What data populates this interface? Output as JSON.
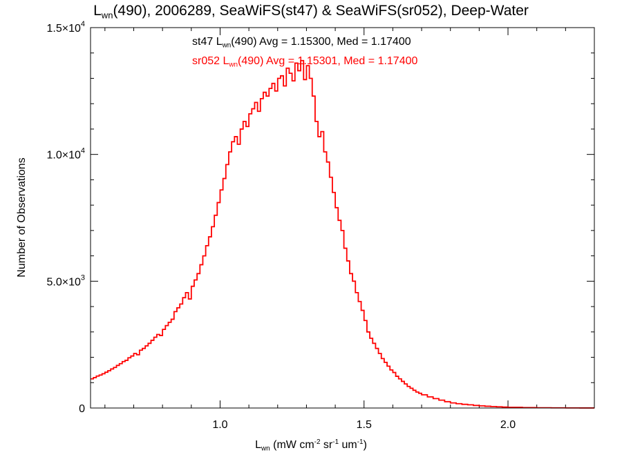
{
  "chart_data": {
    "type": "histogram",
    "title": {
      "prefix": "L",
      "sub": "wn",
      "suffix": "(490), 2006289, SeaWiFS(st47) & SeaWiFS(sr052), Deep-Water"
    },
    "xlabel": {
      "prefix": "L",
      "sub": "wn",
      "p1": " (mW cm",
      "sup1": "-2",
      "p2": " sr",
      "sup2": "-1",
      "p3": " um",
      "sup3": "-1",
      "p4": ")"
    },
    "ylabel": "Number of Observations",
    "xlim": [
      0.55,
      2.3
    ],
    "ylim": [
      0,
      15000
    ],
    "x_ticks": [
      {
        "value": 1.0,
        "label": "1.0"
      },
      {
        "value": 1.5,
        "label": "1.5"
      },
      {
        "value": 2.0,
        "label": "2.0"
      }
    ],
    "y_ticks": [
      {
        "value": 0,
        "label": "0",
        "mantissa": "0",
        "exp": ""
      },
      {
        "value": 5000,
        "label": "5.0×10^3",
        "mantissa": "5.0×10",
        "exp": "3"
      },
      {
        "value": 10000,
        "label": "1.0×10^4",
        "mantissa": "1.0×10",
        "exp": "4"
      },
      {
        "value": 15000,
        "label": "1.5×10^4",
        "mantissa": "1.5×10",
        "exp": "4"
      }
    ],
    "legend": [
      {
        "color": "#000000",
        "prefix": "st47 L",
        "sub": "wn",
        "suffix": "(490) Avg = 1.15300, Med = 1.17400"
      },
      {
        "color": "#ff0000",
        "prefix": "sr052 L",
        "sub": "wn",
        "suffix": "(490) Avg = 1.15301, Med = 1.17400"
      }
    ],
    "legend_position": "top-center",
    "bin_width": 0.01,
    "series": [
      {
        "name": "st47",
        "color": "#000000",
        "x": [
          0.55,
          0.56,
          0.57,
          0.58,
          0.59,
          0.6,
          0.61,
          0.62,
          0.63,
          0.64,
          0.65,
          0.66,
          0.67,
          0.68,
          0.69,
          0.7,
          0.71,
          0.72,
          0.73,
          0.74,
          0.75,
          0.76,
          0.77,
          0.78,
          0.79,
          0.8,
          0.81,
          0.82,
          0.83,
          0.84,
          0.85,
          0.86,
          0.87,
          0.88,
          0.89,
          0.9,
          0.91,
          0.92,
          0.93,
          0.94,
          0.95,
          0.96,
          0.97,
          0.98,
          0.99,
          1.0,
          1.01,
          1.02,
          1.03,
          1.04,
          1.05,
          1.06,
          1.07,
          1.08,
          1.09,
          1.1,
          1.11,
          1.12,
          1.13,
          1.14,
          1.15,
          1.16,
          1.17,
          1.18,
          1.19,
          1.2,
          1.21,
          1.22,
          1.23,
          1.24,
          1.25,
          1.26,
          1.27,
          1.28,
          1.29,
          1.3,
          1.31,
          1.32,
          1.33,
          1.34,
          1.35,
          1.36,
          1.37,
          1.38,
          1.39,
          1.4,
          1.41,
          1.42,
          1.43,
          1.44,
          1.45,
          1.46,
          1.47,
          1.48,
          1.49,
          1.5,
          1.51,
          1.52,
          1.53,
          1.54,
          1.55,
          1.56,
          1.57,
          1.58,
          1.59,
          1.6,
          1.61,
          1.62,
          1.63,
          1.64,
          1.65,
          1.66,
          1.67,
          1.68,
          1.69,
          1.7,
          1.72,
          1.74,
          1.76,
          1.78,
          1.8,
          1.82,
          1.84,
          1.86,
          1.88,
          1.9,
          1.92,
          1.94,
          1.96,
          1.98,
          2.0,
          2.05,
          2.1,
          2.15,
          2.2,
          2.25,
          2.3
        ],
        "y": [
          1150,
          1200,
          1260,
          1300,
          1350,
          1410,
          1470,
          1540,
          1600,
          1680,
          1750,
          1830,
          1880,
          1980,
          2050,
          2150,
          2100,
          2280,
          2350,
          2450,
          2550,
          2670,
          2790,
          2900,
          2860,
          3100,
          3250,
          3380,
          3500,
          3800,
          3950,
          4100,
          4350,
          4550,
          4300,
          4800,
          5050,
          5300,
          5650,
          6000,
          6400,
          6750,
          7150,
          7600,
          8100,
          8600,
          9050,
          9600,
          10100,
          10500,
          10700,
          10400,
          11000,
          11300,
          11100,
          11600,
          11800,
          12050,
          11700,
          12200,
          12450,
          12300,
          12600,
          12800,
          12500,
          13000,
          13100,
          12700,
          13400,
          13200,
          12900,
          13600,
          13300,
          13700,
          12950,
          13500,
          13000,
          12300,
          11300,
          10700,
          10900,
          10100,
          9700,
          9100,
          8500,
          7900,
          7400,
          7000,
          6300,
          5800,
          5300,
          5000,
          4550,
          4200,
          3850,
          3450,
          3000,
          2750,
          2550,
          2350,
          2150,
          1950,
          1800,
          1650,
          1500,
          1400,
          1250,
          1150,
          1050,
          950,
          850,
          780,
          700,
          630,
          580,
          520,
          440,
          370,
          310,
          250,
          200,
          170,
          145,
          125,
          100,
          85,
          70,
          58,
          48,
          38,
          28,
          18,
          10,
          6,
          3,
          1
        ]
      },
      {
        "name": "sr052",
        "color": "#ff0000",
        "x": [
          0.55,
          0.56,
          0.57,
          0.58,
          0.59,
          0.6,
          0.61,
          0.62,
          0.63,
          0.64,
          0.65,
          0.66,
          0.67,
          0.68,
          0.69,
          0.7,
          0.71,
          0.72,
          0.73,
          0.74,
          0.75,
          0.76,
          0.77,
          0.78,
          0.79,
          0.8,
          0.81,
          0.82,
          0.83,
          0.84,
          0.85,
          0.86,
          0.87,
          0.88,
          0.89,
          0.9,
          0.91,
          0.92,
          0.93,
          0.94,
          0.95,
          0.96,
          0.97,
          0.98,
          0.99,
          1.0,
          1.01,
          1.02,
          1.03,
          1.04,
          1.05,
          1.06,
          1.07,
          1.08,
          1.09,
          1.1,
          1.11,
          1.12,
          1.13,
          1.14,
          1.15,
          1.16,
          1.17,
          1.18,
          1.19,
          1.2,
          1.21,
          1.22,
          1.23,
          1.24,
          1.25,
          1.26,
          1.27,
          1.28,
          1.29,
          1.3,
          1.31,
          1.32,
          1.33,
          1.34,
          1.35,
          1.36,
          1.37,
          1.38,
          1.39,
          1.4,
          1.41,
          1.42,
          1.43,
          1.44,
          1.45,
          1.46,
          1.47,
          1.48,
          1.49,
          1.5,
          1.51,
          1.52,
          1.53,
          1.54,
          1.55,
          1.56,
          1.57,
          1.58,
          1.59,
          1.6,
          1.61,
          1.62,
          1.63,
          1.64,
          1.65,
          1.66,
          1.67,
          1.68,
          1.69,
          1.7,
          1.72,
          1.74,
          1.76,
          1.78,
          1.8,
          1.82,
          1.84,
          1.86,
          1.88,
          1.9,
          1.92,
          1.94,
          1.96,
          1.98,
          2.0,
          2.05,
          2.1,
          2.15,
          2.2,
          2.25,
          2.3
        ],
        "y": [
          1150,
          1200,
          1260,
          1300,
          1350,
          1410,
          1470,
          1540,
          1600,
          1680,
          1750,
          1830,
          1880,
          1980,
          2050,
          2150,
          2100,
          2280,
          2350,
          2450,
          2550,
          2670,
          2790,
          2900,
          2860,
          3100,
          3250,
          3380,
          3500,
          3800,
          3950,
          4100,
          4350,
          4550,
          4300,
          4800,
          5050,
          5300,
          5650,
          6000,
          6400,
          6750,
          7150,
          7600,
          8100,
          8600,
          9050,
          9600,
          10100,
          10500,
          10700,
          10400,
          11000,
          11300,
          11100,
          11600,
          11800,
          12050,
          11700,
          12200,
          12450,
          12300,
          12600,
          12800,
          12500,
          13000,
          13100,
          12700,
          13400,
          13200,
          12900,
          13600,
          13300,
          13700,
          12950,
          13500,
          13000,
          12300,
          11300,
          10700,
          10900,
          10100,
          9700,
          9100,
          8500,
          7900,
          7400,
          7000,
          6300,
          5800,
          5300,
          5000,
          4550,
          4200,
          3850,
          3450,
          3000,
          2750,
          2550,
          2350,
          2150,
          1950,
          1800,
          1650,
          1500,
          1400,
          1250,
          1150,
          1050,
          950,
          850,
          780,
          700,
          630,
          580,
          520,
          440,
          370,
          310,
          250,
          200,
          170,
          145,
          125,
          100,
          85,
          70,
          58,
          48,
          38,
          28,
          18,
          10,
          6,
          3,
          1
        ]
      }
    ]
  }
}
